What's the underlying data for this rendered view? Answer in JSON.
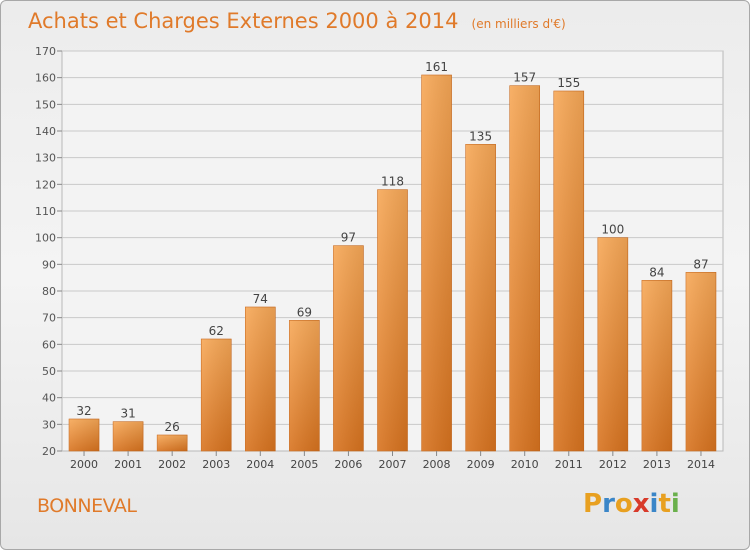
{
  "title": "Achats et Charges Externes 2000 à 2014",
  "subtitle": "(en milliers d'€)",
  "commune": "BONNEVAL",
  "logo": {
    "text": "Proxiti",
    "letters": [
      "P",
      "r",
      "o",
      "x",
      "i",
      "t",
      "i"
    ],
    "colors": [
      "#e8a020",
      "#3a86c8",
      "#e8a020",
      "#d83a2a",
      "#3a86c8",
      "#e8a020",
      "#6ab04c"
    ]
  },
  "colors": {
    "accent": "#e07a2a",
    "bar_top": "#f7a857",
    "bar_bottom": "#d8731f",
    "grid": "#c8c8c8"
  },
  "chart_data": {
    "type": "bar",
    "categories": [
      "2000",
      "2001",
      "2002",
      "2003",
      "2004",
      "2005",
      "2006",
      "2007",
      "2008",
      "2009",
      "2010",
      "2011",
      "2012",
      "2013",
      "2014"
    ],
    "values": [
      32,
      31,
      26,
      62,
      74,
      69,
      97,
      118,
      161,
      135,
      157,
      155,
      100,
      84,
      87
    ],
    "ylim": [
      20,
      170
    ],
    "yticks": [
      20,
      30,
      40,
      50,
      60,
      70,
      80,
      90,
      100,
      110,
      120,
      130,
      140,
      150,
      160,
      170
    ],
    "grid": true,
    "xlabel": "",
    "ylabel": ""
  }
}
